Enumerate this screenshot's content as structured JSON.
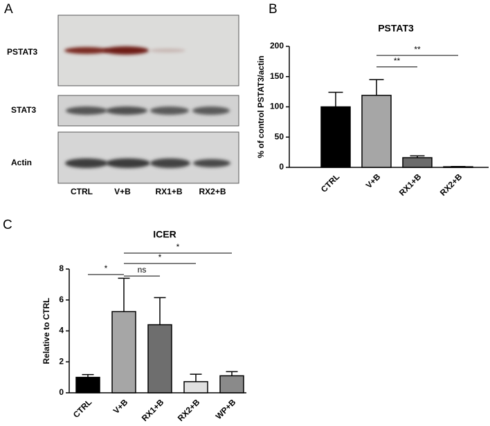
{
  "panel_labels": [
    "A",
    "B",
    "C"
  ],
  "blot": {
    "rows": [
      "PSTAT3",
      "STAT3",
      "Actin"
    ],
    "lanes": [
      "CTRL",
      "V+B",
      "RX1+B",
      "RX2+B"
    ]
  },
  "chart_data": [
    {
      "type": "bar",
      "title": "PSTAT3",
      "y_label": "% of control PSTAT3/actin",
      "categories": [
        "CTRL",
        "V+B",
        "RX1+B",
        "RX2+B"
      ],
      "values": [
        100,
        119,
        16,
        1
      ],
      "errors": [
        24,
        26,
        3,
        0.5
      ],
      "colors": [
        "#000000",
        "#a6a6a6",
        "#6b6b6b",
        "#ffffff"
      ],
      "ylim": [
        0,
        200
      ],
      "yticks": [
        0,
        50,
        100,
        150,
        200
      ],
      "annotations": [
        {
          "from": 1,
          "to": 2,
          "y": 166,
          "label": "**"
        },
        {
          "from": 1,
          "to": 3,
          "y": 185,
          "label": "**"
        }
      ]
    },
    {
      "type": "bar",
      "title": "ICER",
      "y_label": "Relative to CTRL",
      "categories": [
        "CTRL",
        "V+B",
        "RX1+B",
        "RX2+B",
        "WP+B"
      ],
      "values": [
        1.0,
        5.25,
        4.4,
        0.72,
        1.1
      ],
      "errors": [
        0.18,
        2.15,
        1.75,
        0.48,
        0.27
      ],
      "colors": [
        "#000000",
        "#a6a6a6",
        "#6e6e6e",
        "#e0e0e0",
        "#8a8a8a"
      ],
      "ylim": [
        0,
        8
      ],
      "yticks": [
        0,
        2,
        4,
        6,
        8
      ],
      "annotations": [
        {
          "from": 0,
          "to": 1,
          "y": 7.64,
          "label": "*"
        },
        {
          "from": 1,
          "to": 2,
          "y": 7.55,
          "label": "ns"
        },
        {
          "from": 1,
          "to": 3,
          "y": 8.36,
          "label": "*"
        },
        {
          "from": 1,
          "to": 4,
          "y": 9.03,
          "label": "*"
        }
      ]
    }
  ]
}
